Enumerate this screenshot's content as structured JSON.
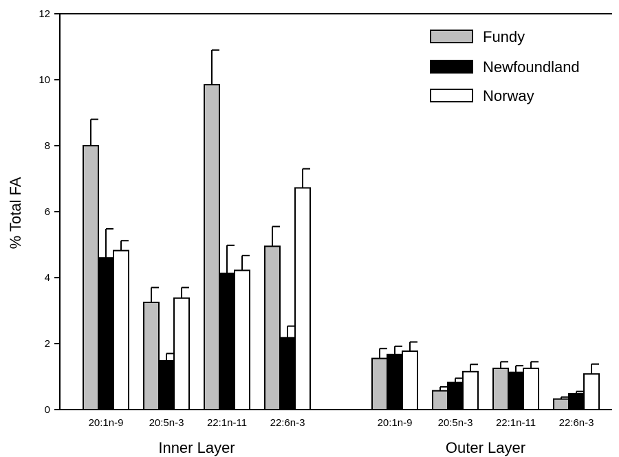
{
  "chart_data": {
    "type": "bar",
    "ylabel": "% Total FA",
    "ylim": [
      0,
      12
    ],
    "yticks": [
      0,
      2,
      4,
      6,
      8,
      10,
      12
    ],
    "groups": [
      {
        "label": "Inner Layer",
        "categories": [
          "20:1n-9",
          "20:5n-3",
          "22:1n-11",
          "22:6n-3"
        ]
      },
      {
        "label": "Outer Layer",
        "categories": [
          "20:1n-9",
          "20:5n-3",
          "22:1n-11",
          "22:6n-3"
        ]
      }
    ],
    "series": [
      {
        "name": "Fundy",
        "color": "#bfbfbf",
        "values": [
          8.0,
          3.25,
          9.85,
          4.95,
          1.55,
          0.57,
          1.25,
          0.32
        ],
        "errors": [
          0.8,
          0.45,
          1.05,
          0.6,
          0.3,
          0.12,
          0.2,
          0.06
        ]
      },
      {
        "name": "Newfoundland",
        "color": "#000000",
        "values": [
          4.6,
          1.48,
          4.13,
          2.18,
          1.67,
          0.82,
          1.13,
          0.48
        ],
        "errors": [
          0.88,
          0.22,
          0.85,
          0.35,
          0.25,
          0.13,
          0.2,
          0.07
        ]
      },
      {
        "name": "Norway",
        "color": "#ffffff",
        "values": [
          4.82,
          3.38,
          4.22,
          6.72,
          1.77,
          1.15,
          1.25,
          1.08
        ],
        "errors": [
          0.3,
          0.32,
          0.45,
          0.58,
          0.28,
          0.22,
          0.2,
          0.3
        ]
      }
    ],
    "legend_position": "top-right",
    "grid": false
  }
}
